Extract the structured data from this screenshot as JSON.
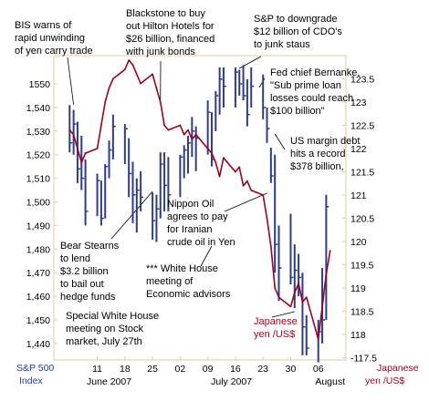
{
  "chart_data": {
    "type": "line",
    "series": [
      {
        "name": "S&P 500 Index",
        "style": "bar",
        "color": "#2d3d8d",
        "axis": "left",
        "bars": [
          {
            "x": 4,
            "high": 1541,
            "low": 1521,
            "close": 1525
          },
          {
            "x": 5,
            "high": 1539,
            "low": 1520,
            "close": 1533
          },
          {
            "x": 6,
            "high": 1534,
            "low": 1508,
            "close": 1514
          },
          {
            "x": 7,
            "high": 1528,
            "low": 1505,
            "close": 1510
          },
          {
            "x": 8,
            "high": 1518,
            "low": 1490,
            "close": 1496
          },
          {
            "x": 11,
            "high": 1512,
            "low": 1494,
            "close": 1509
          },
          {
            "x": 12,
            "high": 1509,
            "low": 1490,
            "close": 1493
          },
          {
            "x": 13,
            "high": 1516,
            "low": 1493,
            "close": 1515
          },
          {
            "x": 14,
            "high": 1526,
            "low": 1510,
            "close": 1522
          },
          {
            "x": 15,
            "high": 1537,
            "low": 1518,
            "close": 1532
          },
          {
            "x": 18,
            "high": 1533,
            "low": 1516,
            "close": 1531
          },
          {
            "x": 19,
            "high": 1527,
            "low": 1502,
            "close": 1512
          },
          {
            "x": 20,
            "high": 1517,
            "low": 1491,
            "close": 1503
          },
          {
            "x": 21,
            "high": 1510,
            "low": 1487,
            "close": 1505
          },
          {
            "x": 22,
            "high": 1513,
            "low": 1496,
            "close": 1502
          },
          {
            "x": 25,
            "high": 1504,
            "low": 1484,
            "close": 1492
          },
          {
            "x": 26,
            "high": 1503,
            "low": 1483,
            "close": 1497
          },
          {
            "x": 27,
            "high": 1521,
            "low": 1493,
            "close": 1516
          },
          {
            "x": 28,
            "high": 1521,
            "low": 1496,
            "close": 1507
          },
          {
            "x": 29,
            "high": 1519,
            "low": 1496,
            "close": 1503
          },
          {
            "x": 32,
            "high": 1520,
            "low": 1502,
            "close": 1519
          },
          {
            "x": 33,
            "high": 1524,
            "low": 1510,
            "close": 1522
          },
          {
            "x": 34,
            "high": 1528,
            "low": 1512,
            "close": 1525
          },
          {
            "x": 35,
            "high": 1536,
            "low": 1519,
            "close": 1530
          },
          {
            "x": 36,
            "high": 1532,
            "low": 1513,
            "close": 1527
          },
          {
            "x": 39,
            "high": 1543,
            "low": 1520,
            "close": 1538
          },
          {
            "x": 40,
            "high": 1538,
            "low": 1515,
            "close": 1518
          },
          {
            "x": 41,
            "high": 1547,
            "low": 1530,
            "close": 1545
          },
          {
            "x": 42,
            "high": 1557,
            "low": 1537,
            "close": 1552
          },
          {
            "x": 43,
            "high": 1557,
            "low": 1540,
            "close": 1549
          },
          {
            "x": 46,
            "high": 1557,
            "low": 1540,
            "close": 1555
          },
          {
            "x": 47,
            "high": 1556,
            "low": 1545,
            "close": 1550
          },
          {
            "x": 48,
            "high": 1558,
            "low": 1543,
            "close": 1545
          },
          {
            "x": 49,
            "high": 1552,
            "low": 1532,
            "close": 1537
          },
          {
            "x": 50,
            "high": 1557,
            "low": 1540,
            "close": 1549
          },
          {
            "x": 53,
            "high": 1554,
            "low": 1535,
            "close": 1540
          },
          {
            "x": 54,
            "high": 1540,
            "low": 1525,
            "close": 1531
          },
          {
            "x": 55,
            "high": 1523,
            "low": 1508,
            "close": 1511
          },
          {
            "x": 56,
            "high": 1520,
            "low": 1470,
            "close": 1482
          },
          {
            "x": 57,
            "high": 1490,
            "low": 1458,
            "close": 1472
          },
          {
            "x": 60,
            "high": 1495,
            "low": 1465,
            "close": 1468
          },
          {
            "x": 61,
            "high": 1482,
            "low": 1455,
            "close": 1471
          },
          {
            "x": 62,
            "high": 1478,
            "low": 1460,
            "close": 1468
          },
          {
            "x": 63,
            "high": 1470,
            "low": 1435,
            "close": 1447
          },
          {
            "x": 64,
            "high": 1452,
            "low": 1435,
            "close": 1438
          },
          {
            "x": 67,
            "high": 1450,
            "low": 1432,
            "close": 1445
          },
          {
            "x": 68,
            "high": 1472,
            "low": 1440,
            "close": 1450
          },
          {
            "x": 69,
            "high": 1503,
            "low": 1450,
            "close": 1498
          }
        ]
      },
      {
        "name": "Japanese yen /US$",
        "style": "line",
        "color": "#a0001e",
        "axis": "right",
        "points": [
          [
            4,
            122.4
          ],
          [
            5,
            122.3
          ],
          [
            6,
            122.0
          ],
          [
            7,
            121.7
          ],
          [
            8,
            121.9
          ],
          [
            11,
            122.0
          ],
          [
            12,
            122.5
          ],
          [
            13,
            123.0
          ],
          [
            14,
            123.3
          ],
          [
            15,
            123.5
          ],
          [
            18,
            123.7
          ],
          [
            19,
            123.9
          ],
          [
            20,
            123.8
          ],
          [
            21,
            123.6
          ],
          [
            22,
            123.4
          ],
          [
            25,
            123.6
          ],
          [
            26,
            123.3
          ],
          [
            27,
            123.0
          ],
          [
            28,
            122.5
          ],
          [
            29,
            122.4
          ],
          [
            32,
            122.5
          ],
          [
            33,
            122.3
          ],
          [
            34,
            122.4
          ],
          [
            35,
            122.2
          ],
          [
            36,
            122.3
          ],
          [
            39,
            122.0
          ],
          [
            40,
            121.9
          ],
          [
            41,
            121.7
          ],
          [
            42,
            121.4
          ],
          [
            43,
            121.8
          ],
          [
            46,
            121.5
          ],
          [
            47,
            121.6
          ],
          [
            48,
            121.2
          ],
          [
            49,
            121.3
          ],
          [
            50,
            121.1
          ],
          [
            53,
            121.0
          ],
          [
            54,
            120.5
          ],
          [
            55,
            119.9
          ],
          [
            56,
            119.0
          ],
          [
            57,
            118.8
          ],
          [
            60,
            118.6
          ],
          [
            61,
            118.9
          ],
          [
            62,
            119.1
          ],
          [
            63,
            118.7
          ],
          [
            64,
            118.8
          ],
          [
            67,
            117.9
          ],
          [
            68,
            118.6
          ],
          [
            69,
            119.3
          ],
          [
            70,
            119.8
          ]
        ]
      }
    ],
    "y_left": {
      "label": [
        "S&P 500",
        "Index"
      ],
      "ylim": [
        1433,
        1562
      ],
      "ticks": [
        1440,
        1450,
        1460,
        1470,
        1480,
        1490,
        1500,
        1510,
        1520,
        1530,
        1540,
        1550
      ],
      "tick_labels": [
        "1,440",
        "1,450",
        "1,460",
        "1,470",
        "1,480",
        "1,490",
        "1,500",
        "1,510",
        "1,520",
        "1,530",
        "1,540",
        "1550"
      ]
    },
    "y_right": {
      "label": [
        "Japanese",
        "yen /US$"
      ],
      "ylim": [
        117.45,
        124.0
      ],
      "ticks": [
        117.5,
        118,
        118.5,
        119,
        119.5,
        120,
        120.5,
        121,
        121.5,
        122,
        122.5,
        123,
        123.5
      ],
      "tick_labels": [
        "-117.5",
        "118",
        "118.5",
        "119",
        "119.5",
        "120",
        "120.5",
        "121",
        "121.5",
        "122",
        "122.5",
        "123",
        "123.5"
      ]
    },
    "x_axis": {
      "xlim": [
        0,
        74
      ],
      "ticks": [
        {
          "x": 11,
          "label": "11"
        },
        {
          "x": 18,
          "label": "18"
        },
        {
          "x": 25,
          "label": "25"
        },
        {
          "x": 32,
          "label": "02"
        },
        {
          "x": 39,
          "label": "09"
        },
        {
          "x": 46,
          "label": "16"
        },
        {
          "x": 53,
          "label": "23"
        },
        {
          "x": 60,
          "label": "30"
        },
        {
          "x": 67,
          "label": "06"
        }
      ],
      "month_labels": [
        {
          "x": 14,
          "label": "June 2007"
        },
        {
          "x": 45,
          "label": "July 2007"
        },
        {
          "x": 70,
          "label": "August"
        }
      ]
    },
    "annotations": [
      {
        "id": "bis",
        "lines": [
          "BIS warns of",
          "rapid unwinding",
          "of yen carry trade"
        ]
      },
      {
        "id": "blackstone",
        "lines": [
          "Blackstone to buy",
          "out Hilton Hotels for",
          "$26 billion, financed",
          "with junk bonds"
        ]
      },
      {
        "id": "sp-downgrade",
        "lines": [
          "S&P to downgrade",
          "$12 billion of CDO's",
          "to junk staus"
        ]
      },
      {
        "id": "bernanke",
        "lines": [
          "Fed chief Bernanke,",
          "\"Sub prime loan",
          "losses could reach",
          "$100 billion\""
        ]
      },
      {
        "id": "margin-debt",
        "lines": [
          "US margin debt",
          "hits a record",
          "$378 billion,"
        ]
      },
      {
        "id": "nippon-oil",
        "lines": [
          "Nippon Oil",
          "agrees to pay",
          "for Iranian",
          "crude oil in Yen"
        ]
      },
      {
        "id": "bear-stearns",
        "lines": [
          "Bear Stearns",
          "to lend",
          "$3.2 billion",
          "to bail out",
          "hedge funds"
        ]
      },
      {
        "id": "white-house-econ",
        "lines": [
          "*** White House",
          "meeting of",
          "Economic advisors"
        ]
      },
      {
        "id": "special-wh",
        "lines": [
          "Special White House",
          "meeting on Stock",
          "market, July 27th"
        ]
      },
      {
        "id": "yen-label",
        "lines": [
          "Japanese",
          "yen /US$"
        ]
      }
    ]
  }
}
